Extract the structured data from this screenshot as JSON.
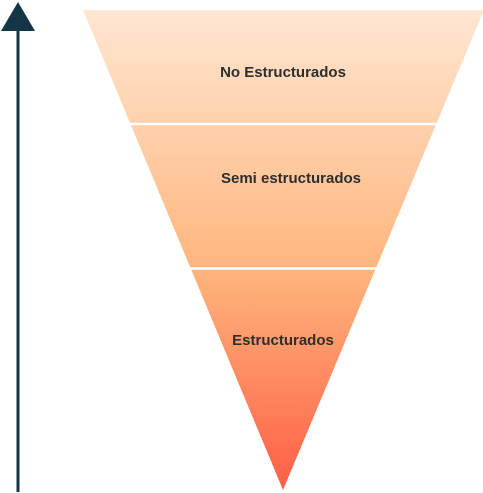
{
  "funnel": {
    "segments": [
      {
        "label": "No Estructurados"
      },
      {
        "label": "Semi estructurados"
      },
      {
        "label": "Estructurados"
      }
    ]
  },
  "colors": {
    "arrow": "#143545",
    "gradient_top": "#FFE7D2",
    "gradient_mid": "#FFB47C",
    "gradient_bottom": "#FF5E45",
    "divider": "#FFFFFF",
    "label_text": "#2E2E2E"
  },
  "icons": {
    "arrow": "arrow-up-icon"
  }
}
